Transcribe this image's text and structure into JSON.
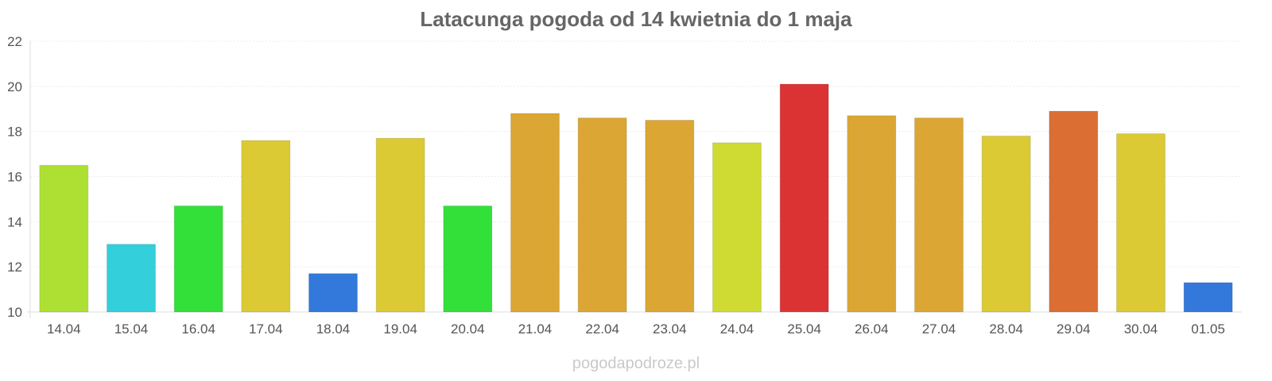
{
  "chart_data": {
    "type": "bar",
    "title": "Latacunga pogoda od 14 kwietnia do 1 maja",
    "xlabel": "",
    "ylabel": "",
    "ylim": [
      10,
      22
    ],
    "yticks": [
      "10",
      "12",
      "14",
      "16",
      "18",
      "20",
      "22"
    ],
    "grid": true,
    "legend": "none",
    "categories": [
      "14.04",
      "15.04",
      "16.04",
      "17.04",
      "18.04",
      "19.04",
      "20.04",
      "21.04",
      "22.04",
      "23.04",
      "24.04",
      "25.04",
      "26.04",
      "27.04",
      "28.04",
      "29.04",
      "30.04",
      "01.05"
    ],
    "values": [
      16.5,
      13.0,
      14.7,
      17.6,
      11.7,
      17.7,
      14.7,
      18.8,
      18.6,
      18.5,
      17.5,
      20.1,
      18.7,
      18.6,
      17.8,
      18.9,
      17.9,
      11.3
    ],
    "colors": [
      "#ade033",
      "#33cfdb",
      "#33e03a",
      "#dbca33",
      "#3378db",
      "#dbca33",
      "#33e03a",
      "#dba633",
      "#dba633",
      "#dba633",
      "#cfdb33",
      "#db3333",
      "#dba633",
      "#dba633",
      "#dbca33",
      "#db6e33",
      "#dbca33",
      "#3378db"
    ]
  },
  "watermark": "pogodapodroze.pl"
}
